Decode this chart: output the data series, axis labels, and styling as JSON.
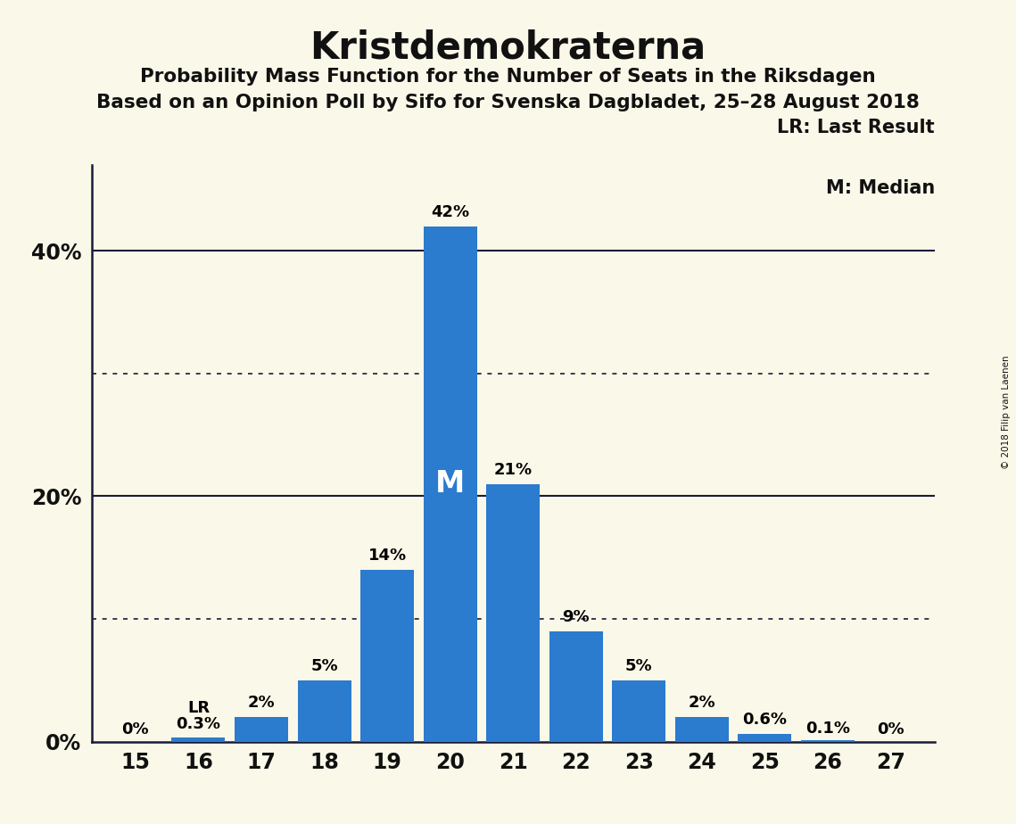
{
  "title": "Kristdemokraterna",
  "subtitle1": "Probability Mass Function for the Number of Seats in the Riksdagen",
  "subtitle2": "Based on an Opinion Poll by Sifo for Svenska Dagbladet, 25–28 August 2018",
  "copyright": "© 2018 Filip van Laenen",
  "legend_lr": "LR: Last Result",
  "legend_m": "M: Median",
  "seats": [
    15,
    16,
    17,
    18,
    19,
    20,
    21,
    22,
    23,
    24,
    25,
    26,
    27
  ],
  "probabilities": [
    0.0,
    0.3,
    2.0,
    5.0,
    14.0,
    42.0,
    21.0,
    9.0,
    5.0,
    2.0,
    0.6,
    0.1,
    0.0
  ],
  "labels": [
    "0%",
    "0.3%",
    "2%",
    "5%",
    "14%",
    "42%",
    "21%",
    "9%",
    "5%",
    "2%",
    "0.6%",
    "0.1%",
    "0%"
  ],
  "bar_color": "#2b7bce",
  "background_color": "#faf8e8",
  "median_seat": 20,
  "lr_seat": 16,
  "dotted_lines": [
    10,
    30
  ],
  "solid_lines": [
    20,
    40
  ],
  "ylim": [
    0,
    47
  ],
  "ytick_positions": [
    0,
    20,
    40
  ],
  "ytick_labels": [
    "0%",
    "20%",
    "40%"
  ]
}
